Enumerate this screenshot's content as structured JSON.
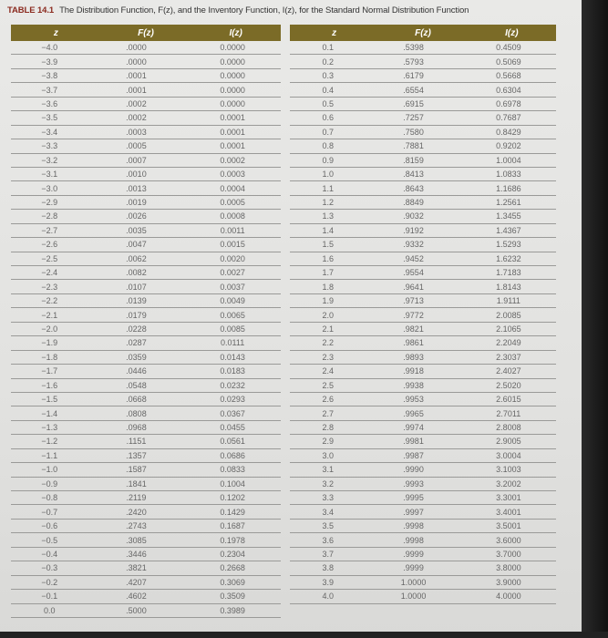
{
  "title": {
    "label": "TABLE 14.1",
    "text": "The Distribution Function, F(z), and the Inventory Function, I(z), for the Standard Normal Distribution Function"
  },
  "headers": [
    "z",
    "F(z)",
    "I(z)"
  ],
  "header_color": "#7b6b27",
  "left_rows": [
    [
      "−4.0",
      ".0000",
      "0.0000"
    ],
    [
      "−3.9",
      ".0000",
      "0.0000"
    ],
    [
      "−3.8",
      ".0001",
      "0.0000"
    ],
    [
      "−3.7",
      ".0001",
      "0.0000"
    ],
    [
      "−3.6",
      ".0002",
      "0.0000"
    ],
    [
      "−3.5",
      ".0002",
      "0.0001"
    ],
    [
      "−3.4",
      ".0003",
      "0.0001"
    ],
    [
      "−3.3",
      ".0005",
      "0.0001"
    ],
    [
      "−3.2",
      ".0007",
      "0.0002"
    ],
    [
      "−3.1",
      ".0010",
      "0.0003"
    ],
    [
      "−3.0",
      ".0013",
      "0.0004"
    ],
    [
      "−2.9",
      ".0019",
      "0.0005"
    ],
    [
      "−2.8",
      ".0026",
      "0.0008"
    ],
    [
      "−2.7",
      ".0035",
      "0.0011"
    ],
    [
      "−2.6",
      ".0047",
      "0.0015"
    ],
    [
      "−2.5",
      ".0062",
      "0.0020"
    ],
    [
      "−2.4",
      ".0082",
      "0.0027"
    ],
    [
      "−2.3",
      ".0107",
      "0.0037"
    ],
    [
      "−2.2",
      ".0139",
      "0.0049"
    ],
    [
      "−2.1",
      ".0179",
      "0.0065"
    ],
    [
      "−2.0",
      ".0228",
      "0.0085"
    ],
    [
      "−1.9",
      ".0287",
      "0.0111"
    ],
    [
      "−1.8",
      ".0359",
      "0.0143"
    ],
    [
      "−1.7",
      ".0446",
      "0.0183"
    ],
    [
      "−1.6",
      ".0548",
      "0.0232"
    ],
    [
      "−1.5",
      ".0668",
      "0.0293"
    ],
    [
      "−1.4",
      ".0808",
      "0.0367"
    ],
    [
      "−1.3",
      ".0968",
      "0.0455"
    ],
    [
      "−1.2",
      ".1151",
      "0.0561"
    ],
    [
      "−1.1",
      ".1357",
      "0.0686"
    ],
    [
      "−1.0",
      ".1587",
      "0.0833"
    ],
    [
      "−0.9",
      ".1841",
      "0.1004"
    ],
    [
      "−0.8",
      ".2119",
      "0.1202"
    ],
    [
      "−0.7",
      ".2420",
      "0.1429"
    ],
    [
      "−0.6",
      ".2743",
      "0.1687"
    ],
    [
      "−0.5",
      ".3085",
      "0.1978"
    ],
    [
      "−0.4",
      ".3446",
      "0.2304"
    ],
    [
      "−0.3",
      ".3821",
      "0.2668"
    ],
    [
      "−0.2",
      ".4207",
      "0.3069"
    ],
    [
      "−0.1",
      ".4602",
      "0.3509"
    ],
    [
      "0.0",
      ".5000",
      "0.3989"
    ]
  ],
  "right_rows": [
    [
      "0.1",
      ".5398",
      "0.4509"
    ],
    [
      "0.2",
      ".5793",
      "0.5069"
    ],
    [
      "0.3",
      ".6179",
      "0.5668"
    ],
    [
      "0.4",
      ".6554",
      "0.6304"
    ],
    [
      "0.5",
      ".6915",
      "0.6978"
    ],
    [
      "0.6",
      ".7257",
      "0.7687"
    ],
    [
      "0.7",
      ".7580",
      "0.8429"
    ],
    [
      "0.8",
      ".7881",
      "0.9202"
    ],
    [
      "0.9",
      ".8159",
      "1.0004"
    ],
    [
      "1.0",
      ".8413",
      "1.0833"
    ],
    [
      "1.1",
      ".8643",
      "1.1686"
    ],
    [
      "1.2",
      ".8849",
      "1.2561"
    ],
    [
      "1.3",
      ".9032",
      "1.3455"
    ],
    [
      "1.4",
      ".9192",
      "1.4367"
    ],
    [
      "1.5",
      ".9332",
      "1.5293"
    ],
    [
      "1.6",
      ".9452",
      "1.6232"
    ],
    [
      "1.7",
      ".9554",
      "1.7183"
    ],
    [
      "1.8",
      ".9641",
      "1.8143"
    ],
    [
      "1.9",
      ".9713",
      "1.9111"
    ],
    [
      "2.0",
      ".9772",
      "2.0085"
    ],
    [
      "2.1",
      ".9821",
      "2.1065"
    ],
    [
      "2.2",
      ".9861",
      "2.2049"
    ],
    [
      "2.3",
      ".9893",
      "2.3037"
    ],
    [
      "2.4",
      ".9918",
      "2.4027"
    ],
    [
      "2.5",
      ".9938",
      "2.5020"
    ],
    [
      "2.6",
      ".9953",
      "2.6015"
    ],
    [
      "2.7",
      ".9965",
      "2.7011"
    ],
    [
      "2.8",
      ".9974",
      "2.8008"
    ],
    [
      "2.9",
      ".9981",
      "2.9005"
    ],
    [
      "3.0",
      ".9987",
      "3.0004"
    ],
    [
      "3.1",
      ".9990",
      "3.1003"
    ],
    [
      "3.2",
      ".9993",
      "3.2002"
    ],
    [
      "3.3",
      ".9995",
      "3.3001"
    ],
    [
      "3.4",
      ".9997",
      "3.4001"
    ],
    [
      "3.5",
      ".9998",
      "3.5001"
    ],
    [
      "3.6",
      ".9998",
      "3.6000"
    ],
    [
      "3.7",
      ".9999",
      "3.7000"
    ],
    [
      "3.8",
      ".9999",
      "3.8000"
    ],
    [
      "3.9",
      "1.0000",
      "3.9000"
    ],
    [
      "4.0",
      "1.0000",
      "4.0000"
    ]
  ]
}
